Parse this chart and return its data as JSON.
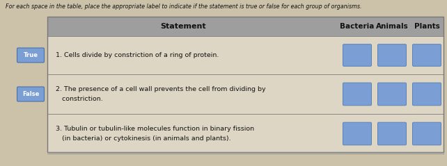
{
  "title_text": "For each space in the table, place the appropriate label to indicate if the statement is true or false for each group of organisms.",
  "bg_color": "#ccc2aa",
  "header_bg": "#9e9e9e",
  "header_text_color": "#111111",
  "row_bg": "#ddd6c4",
  "box_color": "#7b9fd4",
  "box_border": "#5a80b8",
  "label_box_color": "#7b9fd4",
  "label_box_border": "#4a70a8",
  "divider_color": "#888888",
  "col_header": [
    "Statement",
    "Bacteria",
    "Animals",
    "Plants"
  ],
  "rows": [
    {
      "label": "True",
      "line1": "1. Cells divide by constriction of a ring of protein.",
      "line2": "",
      "show_label": true
    },
    {
      "label": "False",
      "line1": "2. The presence of a cell wall prevents the cell from dividing by",
      "line2": "   constriction.",
      "show_label": true
    },
    {
      "label": "",
      "line1": "3. Tubulin or tubulin-like molecules function in binary fission",
      "line2": "   (in bacteria) or cytokinesis (in animals and plants).",
      "show_label": false
    }
  ],
  "figsize": [
    6.42,
    2.39
  ],
  "dpi": 100
}
